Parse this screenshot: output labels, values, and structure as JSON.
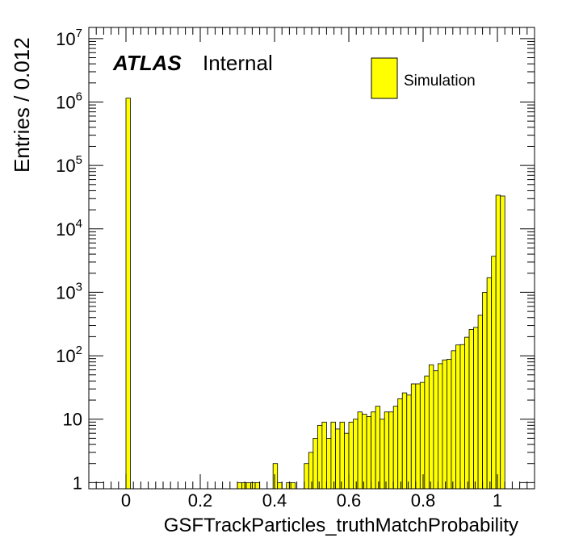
{
  "header": {
    "experiment": "ATLAS",
    "status": "Internal"
  },
  "legend": {
    "entries": [
      {
        "label": "Simulation",
        "color": "#ffff00"
      }
    ],
    "placement": "top-right"
  },
  "chart_data": {
    "type": "bar",
    "xlabel": "GSFTrackParticles_truthMatchProbability",
    "ylabel": "Entries / 0.012",
    "xlim": [
      -0.1,
      1.1
    ],
    "ylim": [
      0.8,
      15000000
    ],
    "yscale": "log",
    "bin_width": 0.012,
    "fill_color": "#ffff00",
    "line_color": "#000000",
    "x_ticks": [
      "0",
      "0.2",
      "0.4",
      "0.6",
      "0.8",
      "1"
    ],
    "y_ticks": [
      {
        "base": "1",
        "exp": ""
      },
      {
        "base": "10",
        "exp": ""
      },
      {
        "base": "10",
        "exp": "2"
      },
      {
        "base": "10",
        "exp": "3"
      },
      {
        "base": "10",
        "exp": "4"
      },
      {
        "base": "10",
        "exp": "5"
      },
      {
        "base": "10",
        "exp": "6"
      },
      {
        "base": "10",
        "exp": "7"
      }
    ],
    "series": [
      {
        "bins": [
          [
            0.0,
            1150000
          ],
          [
            0.3,
            1
          ],
          [
            0.312,
            1
          ],
          [
            0.324,
            1
          ],
          [
            0.336,
            1
          ],
          [
            0.348,
            1
          ],
          [
            0.396,
            2
          ],
          [
            0.408,
            1
          ],
          [
            0.432,
            1
          ],
          [
            0.444,
            1
          ],
          [
            0.48,
            2
          ],
          [
            0.492,
            3
          ],
          [
            0.504,
            5
          ],
          [
            0.516,
            8
          ],
          [
            0.528,
            9
          ],
          [
            0.54,
            5
          ],
          [
            0.552,
            9
          ],
          [
            0.564,
            7
          ],
          [
            0.576,
            9
          ],
          [
            0.588,
            6
          ],
          [
            0.6,
            9
          ],
          [
            0.612,
            10
          ],
          [
            0.624,
            13
          ],
          [
            0.636,
            12
          ],
          [
            0.648,
            11
          ],
          [
            0.66,
            13
          ],
          [
            0.672,
            16
          ],
          [
            0.684,
            10
          ],
          [
            0.696,
            13
          ],
          [
            0.708,
            13
          ],
          [
            0.72,
            16
          ],
          [
            0.732,
            21
          ],
          [
            0.744,
            26
          ],
          [
            0.756,
            24
          ],
          [
            0.768,
            36
          ],
          [
            0.78,
            36
          ],
          [
            0.792,
            38
          ],
          [
            0.804,
            48
          ],
          [
            0.816,
            72
          ],
          [
            0.828,
            58
          ],
          [
            0.84,
            75
          ],
          [
            0.852,
            86
          ],
          [
            0.864,
            88
          ],
          [
            0.876,
            120
          ],
          [
            0.888,
            148
          ],
          [
            0.9,
            150
          ],
          [
            0.912,
            196
          ],
          [
            0.924,
            260
          ],
          [
            0.936,
            280
          ],
          [
            0.948,
            435
          ],
          [
            0.96,
            1000
          ],
          [
            0.972,
            1700
          ],
          [
            0.984,
            3700
          ],
          [
            0.996,
            34000
          ],
          [
            1.008,
            33000
          ]
        ]
      }
    ]
  }
}
